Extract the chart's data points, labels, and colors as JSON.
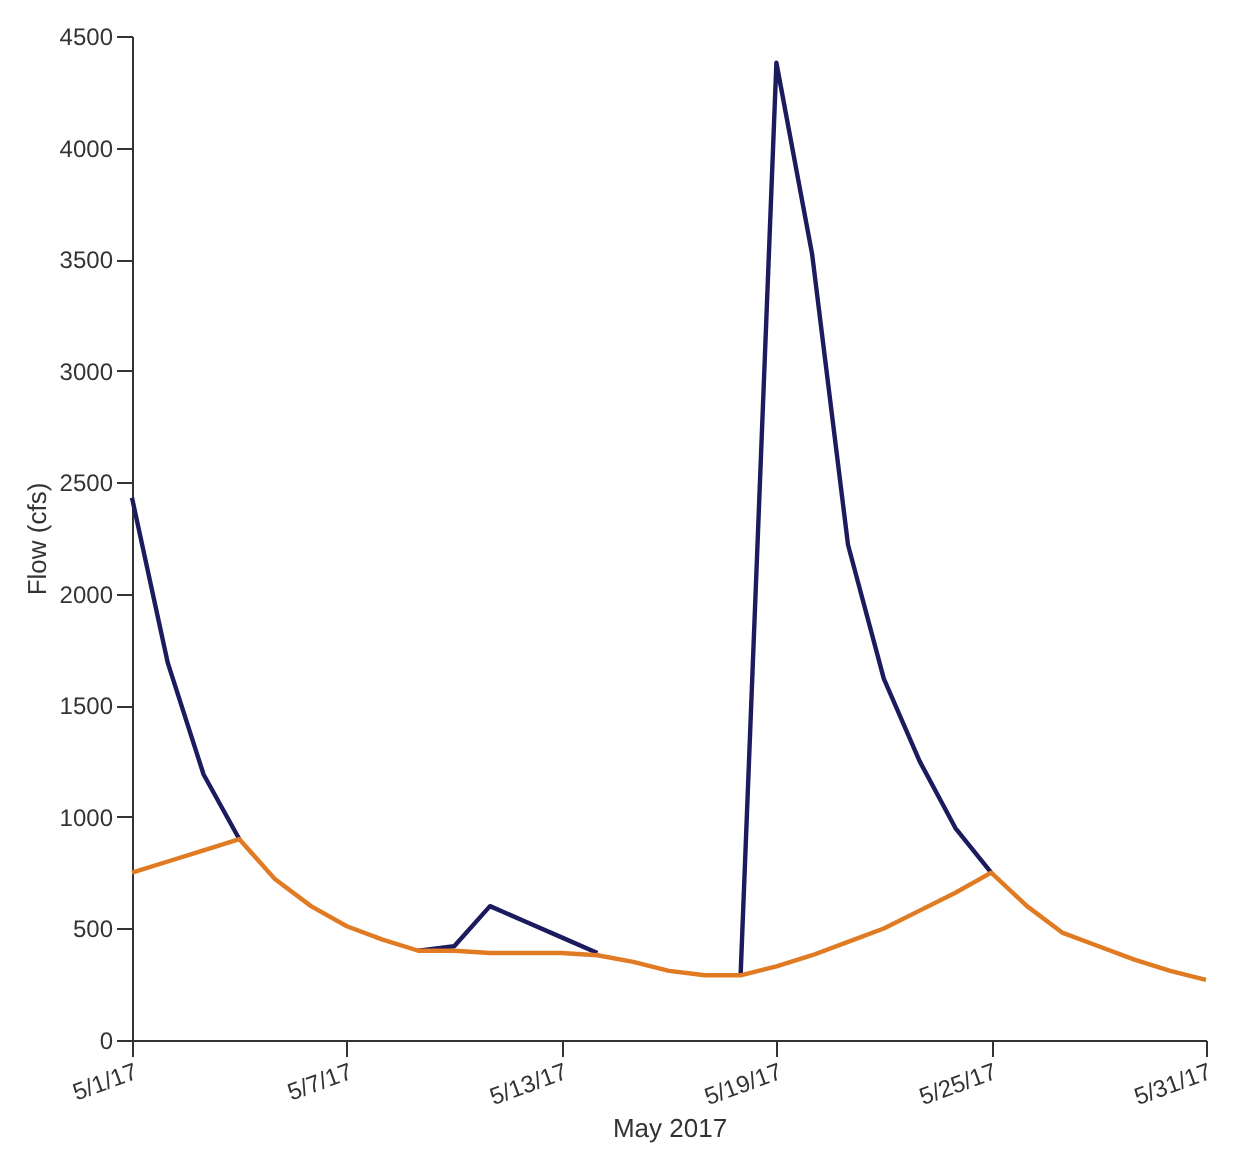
{
  "chart_data": {
    "type": "line",
    "xlabel": "May 2017",
    "ylabel": "Flow (cfs)",
    "x": [
      "2017-05-01",
      "2017-05-02",
      "2017-05-03",
      "2017-05-04",
      "2017-05-05",
      "2017-05-06",
      "2017-05-07",
      "2017-05-08",
      "2017-05-09",
      "2017-05-10",
      "2017-05-11",
      "2017-05-12",
      "2017-05-13",
      "2017-05-14",
      "2017-05-15",
      "2017-05-16",
      "2017-05-17",
      "2017-05-18",
      "2017-05-19",
      "2017-05-20",
      "2017-05-21",
      "2017-05-22",
      "2017-05-23",
      "2017-05-24",
      "2017-05-25",
      "2017-05-26",
      "2017-05-27",
      "2017-05-28",
      "2017-05-29",
      "2017-05-30",
      "2017-05-31"
    ],
    "series": [
      {
        "color": "#1b1b5e",
        "values": [
          2430,
          1690,
          1190,
          900,
          null,
          null,
          null,
          null,
          400,
          420,
          600,
          530,
          460,
          390,
          null,
          null,
          null,
          290,
          4380,
          3520,
          2220,
          1620,
          1250,
          950,
          750,
          null,
          null,
          null,
          null,
          null,
          null
        ]
      },
      {
        "color": "#e07b24",
        "values": [
          750,
          800,
          850,
          900,
          720,
          600,
          510,
          450,
          400,
          400,
          390,
          390,
          390,
          380,
          350,
          310,
          290,
          290,
          330,
          380,
          440,
          500,
          580,
          660,
          750,
          600,
          480,
          420,
          360,
          310,
          270
        ]
      }
    ],
    "xlim": [
      "2017-05-01",
      "2017-05-31"
    ],
    "xticks": [
      {
        "value": "2017-05-01",
        "label": "5/1/17"
      },
      {
        "value": "2017-05-07",
        "label": "5/7/17"
      },
      {
        "value": "2017-05-13",
        "label": "5/13/17"
      },
      {
        "value": "2017-05-19",
        "label": "5/19/17"
      },
      {
        "value": "2017-05-25",
        "label": "5/25/17"
      },
      {
        "value": "2017-05-31",
        "label": "5/31/17"
      }
    ],
    "ylim": [
      0,
      4500
    ],
    "yticks": [
      0,
      500,
      1000,
      1500,
      2000,
      2500,
      3000,
      3500,
      4000,
      4500
    ],
    "grid": false,
    "marker": "none",
    "line_style": "solid"
  }
}
